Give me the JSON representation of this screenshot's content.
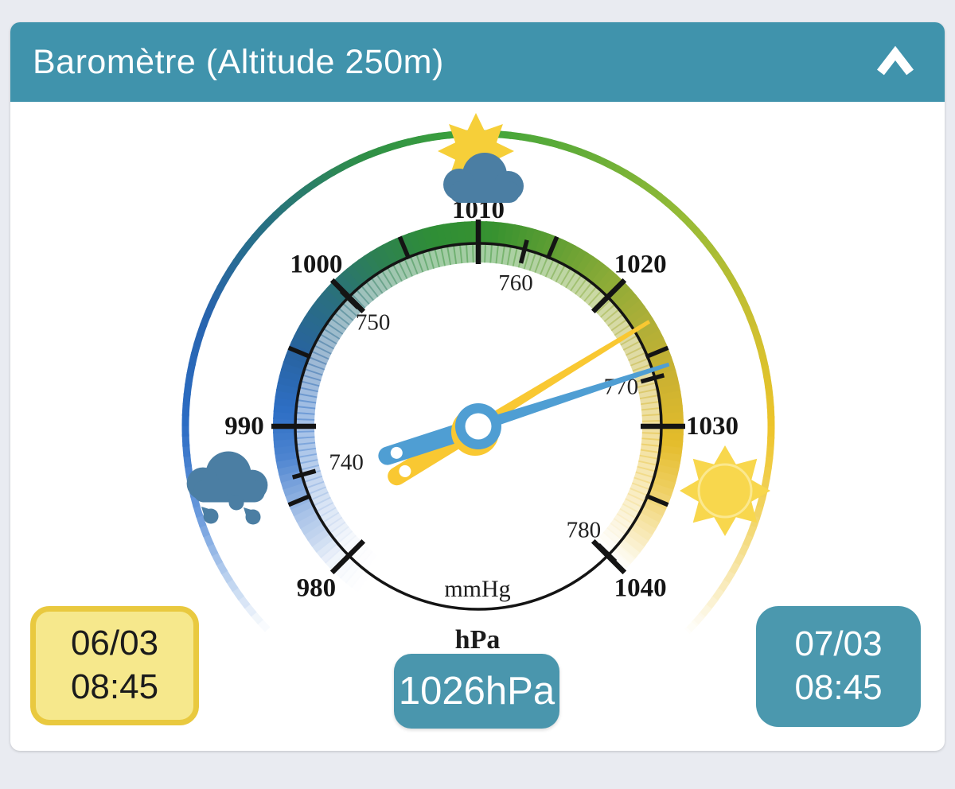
{
  "app": {
    "background": "#e9ebf1",
    "card_background": "#ffffff"
  },
  "header": {
    "title": "Baromètre (Altitude 250m)",
    "background": "#4093ac",
    "collapse_icon": "chevron-up"
  },
  "gauge": {
    "units_primary": "hPa",
    "units_secondary": "mmHg",
    "scale": {
      "min_hpa": 980,
      "max_hpa": 1040,
      "center_value_hpa": 1010,
      "degrees_per_hpa": 4.5,
      "hpa_major_ticks": [
        980,
        990,
        1000,
        1010,
        1020,
        1030,
        1040
      ],
      "hpa_minor_ticks": [
        985,
        995,
        1005,
        1015,
        1025,
        1035
      ],
      "mmhg_ticks": [
        740,
        750,
        760,
        770,
        780
      ],
      "mmhg_to_hpa_factor": 1.333224
    },
    "tick_color": "#141414",
    "band_color_stops": [
      {
        "v": 980,
        "c": "#eef3fa"
      },
      {
        "v": 984,
        "c": "#a9c3e8"
      },
      {
        "v": 988,
        "c": "#4d84d0"
      },
      {
        "v": 991,
        "c": "#2e6fc5"
      },
      {
        "v": 995,
        "c": "#28639f"
      },
      {
        "v": 999,
        "c": "#2a6f80"
      },
      {
        "v": 1003,
        "c": "#2d8054"
      },
      {
        "v": 1007,
        "c": "#2f8e36"
      },
      {
        "v": 1011,
        "c": "#379230"
      },
      {
        "v": 1015,
        "c": "#5f9e33"
      },
      {
        "v": 1019,
        "c": "#8aab37"
      },
      {
        "v": 1023,
        "c": "#afaf38"
      },
      {
        "v": 1027,
        "c": "#ccb231"
      },
      {
        "v": 1031,
        "c": "#e4bc2b"
      },
      {
        "v": 1034,
        "c": "#eece5e"
      },
      {
        "v": 1037,
        "c": "#f7e6ad"
      },
      {
        "v": 1040,
        "c": "#ffffff"
      }
    ],
    "ring_color_stops": [
      {
        "v": 980,
        "c": "#ffffff"
      },
      {
        "v": 983,
        "c": "#bcd2ef"
      },
      {
        "v": 986,
        "c": "#6d9cdd"
      },
      {
        "v": 990,
        "c": "#2b6cc4"
      },
      {
        "v": 995,
        "c": "#2864ad"
      },
      {
        "v": 1000,
        "c": "#27717f"
      },
      {
        "v": 1005,
        "c": "#2f9046"
      },
      {
        "v": 1010,
        "c": "#3ea43a"
      },
      {
        "v": 1015,
        "c": "#68ae38"
      },
      {
        "v": 1020,
        "c": "#97bb36"
      },
      {
        "v": 1025,
        "c": "#c8bf31"
      },
      {
        "v": 1030,
        "c": "#eec42a"
      },
      {
        "v": 1034,
        "c": "#f2d566"
      },
      {
        "v": 1037,
        "c": "#f8e9b4"
      },
      {
        "v": 1040,
        "c": "#ffffff"
      }
    ],
    "needles": [
      {
        "name": "previous",
        "color": "#f9c832",
        "value_hpa": 1023
      },
      {
        "name": "current",
        "color": "#4f9ed3",
        "value_hpa": 1026
      }
    ],
    "hub": {
      "ring_color": "#4f9ed3",
      "back_color": "#f9c832",
      "center_color": "#ffffff"
    },
    "icons": {
      "partly_cloudy": {
        "sun_color": "#f6cf39",
        "cloud_color": "#4b7ea3"
      },
      "rain": {
        "cloud_color": "#4b7ea3",
        "drop_color": "#4b7ea3"
      },
      "sunny": {
        "sun_color": "#f8d74d",
        "core_ring_color": "#fbe88f"
      }
    }
  },
  "readings": {
    "previous": {
      "date": "06/03",
      "time": "08:45",
      "box_background": "#f6e88c",
      "box_border": "#e9c93f"
    },
    "current": {
      "date": "07/03",
      "time": "08:45",
      "box_background": "#4b98ae"
    },
    "pressure_value": "1026hPa",
    "value_box_background": "#4a96ad"
  }
}
